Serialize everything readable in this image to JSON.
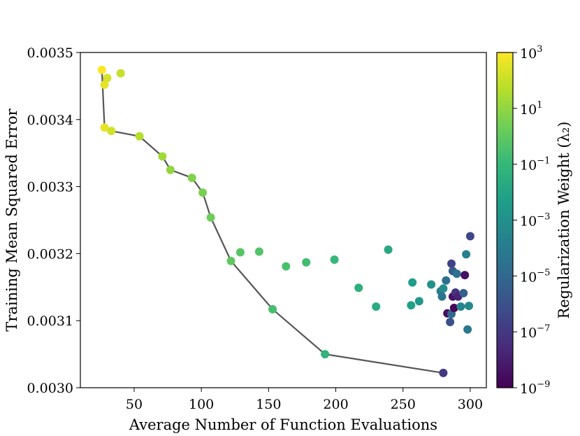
{
  "chart_data": {
    "type": "scatter",
    "title": "",
    "xlabel": "Average Number of Function Evaluations",
    "ylabel": "Training Mean Squared Error",
    "colorbar_label": "Regularization Weight (λ₂)",
    "xlim": [
      10,
      312
    ],
    "ylim": [
      0.003,
      0.0035
    ],
    "x_ticks": [
      50,
      100,
      150,
      200,
      250,
      300
    ],
    "x_tick_labels": [
      "50",
      "100",
      "150",
      "200",
      "250",
      "300"
    ],
    "y_ticks": [
      0.003,
      0.0031,
      0.0032,
      0.0033,
      0.0034,
      0.0035
    ],
    "y_tick_labels": [
      "0.0030",
      "0.0031",
      "0.0032",
      "0.0033",
      "0.0034",
      "0.0035"
    ],
    "colorbar": {
      "log10_range": [
        -9,
        3
      ],
      "tick_exponents": [
        -9,
        -7,
        -5,
        -3,
        -1,
        1,
        3
      ],
      "tick_labels": [
        "10",
        "10",
        "10",
        "10",
        "10",
        "10",
        "10"
      ],
      "tick_label_exponents": [
        "−9",
        "−7",
        "−5",
        "−3",
        "−1",
        "1",
        "3"
      ],
      "colormap": [
        "#440154",
        "#482878",
        "#3e4989",
        "#31688e",
        "#26828e",
        "#1f9e89",
        "#35b779",
        "#6ece58",
        "#b5de2b",
        "#fde725"
      ]
    },
    "points": [
      {
        "x": 26,
        "y": 0.003474,
        "log_lambda": 3.0
      },
      {
        "x": 28,
        "y": 0.003452,
        "log_lambda": 2.6
      },
      {
        "x": 30,
        "y": 0.003462,
        "log_lambda": 2.3
      },
      {
        "x": 40,
        "y": 0.003469,
        "log_lambda": 2.0
      },
      {
        "x": 28,
        "y": 0.003388,
        "log_lambda": 2.6
      },
      {
        "x": 33,
        "y": 0.003383,
        "log_lambda": 2.2
      },
      {
        "x": 54,
        "y": 0.003375,
        "log_lambda": 1.7
      },
      {
        "x": 71,
        "y": 0.003345,
        "log_lambda": 1.3
      },
      {
        "x": 77,
        "y": 0.003325,
        "log_lambda": 1.0
      },
      {
        "x": 93,
        "y": 0.003313,
        "log_lambda": 0.7
      },
      {
        "x": 101,
        "y": 0.003291,
        "log_lambda": 0.5
      },
      {
        "x": 107,
        "y": 0.003254,
        "log_lambda": 0.3
      },
      {
        "x": 122,
        "y": 0.003189,
        "log_lambda": 0.0
      },
      {
        "x": 129,
        "y": 0.003202,
        "log_lambda": -0.2
      },
      {
        "x": 143,
        "y": 0.003203,
        "log_lambda": -0.3
      },
      {
        "x": 153,
        "y": 0.003117,
        "log_lambda": -0.6
      },
      {
        "x": 163,
        "y": 0.003181,
        "log_lambda": -0.5
      },
      {
        "x": 178,
        "y": 0.003187,
        "log_lambda": -0.7
      },
      {
        "x": 192,
        "y": 0.00305,
        "log_lambda": -1.2
      },
      {
        "x": 199,
        "y": 0.003191,
        "log_lambda": -1.0
      },
      {
        "x": 217,
        "y": 0.003149,
        "log_lambda": -1.4
      },
      {
        "x": 230,
        "y": 0.003121,
        "log_lambda": -1.6
      },
      {
        "x": 239,
        "y": 0.003206,
        "log_lambda": -1.8
      },
      {
        "x": 256,
        "y": 0.003123,
        "log_lambda": -2.2
      },
      {
        "x": 257,
        "y": 0.003157,
        "log_lambda": -2.4
      },
      {
        "x": 262,
        "y": 0.003129,
        "log_lambda": -2.6
      },
      {
        "x": 271,
        "y": 0.003154,
        "log_lambda": -3.0
      },
      {
        "x": 278,
        "y": 0.003144,
        "log_lambda": -4.0
      },
      {
        "x": 279,
        "y": 0.003136,
        "log_lambda": -4.3
      },
      {
        "x": 280,
        "y": 0.003148,
        "log_lambda": -3.2
      },
      {
        "x": 280,
        "y": 0.003022,
        "log_lambda": -7.0
      },
      {
        "x": 282,
        "y": 0.00316,
        "log_lambda": -4.6
      },
      {
        "x": 283,
        "y": 0.003111,
        "log_lambda": -8.6
      },
      {
        "x": 285,
        "y": 0.003098,
        "log_lambda": -6.0
      },
      {
        "x": 286,
        "y": 0.00311,
        "log_lambda": -5.0
      },
      {
        "x": 286,
        "y": 0.003185,
        "log_lambda": -6.6
      },
      {
        "x": 287,
        "y": 0.003174,
        "log_lambda": -5.5
      },
      {
        "x": 287,
        "y": 0.003136,
        "log_lambda": -8.3
      },
      {
        "x": 288,
        "y": 0.003119,
        "log_lambda": -8.8
      },
      {
        "x": 289,
        "y": 0.003142,
        "log_lambda": -7.2
      },
      {
        "x": 290,
        "y": 0.00317,
        "log_lambda": -4.5
      },
      {
        "x": 291,
        "y": 0.003136,
        "log_lambda": -7.8
      },
      {
        "x": 293,
        "y": 0.003121,
        "log_lambda": -3.5
      },
      {
        "x": 295,
        "y": 0.003141,
        "log_lambda": -5.4
      },
      {
        "x": 296,
        "y": 0.003168,
        "log_lambda": -8.5
      },
      {
        "x": 297,
        "y": 0.003199,
        "log_lambda": -3.8
      },
      {
        "x": 298,
        "y": 0.003087,
        "log_lambda": -4.2
      },
      {
        "x": 299,
        "y": 0.003122,
        "log_lambda": -3.4
      },
      {
        "x": 300,
        "y": 0.003226,
        "log_lambda": -6.4
      }
    ],
    "frontier_line": [
      {
        "x": 26,
        "y": 0.003474
      },
      {
        "x": 28,
        "y": 0.003388
      },
      {
        "x": 33,
        "y": 0.003383
      },
      {
        "x": 54,
        "y": 0.003375
      },
      {
        "x": 71,
        "y": 0.003345
      },
      {
        "x": 77,
        "y": 0.003325
      },
      {
        "x": 93,
        "y": 0.003313
      },
      {
        "x": 101,
        "y": 0.003291
      },
      {
        "x": 107,
        "y": 0.003254
      },
      {
        "x": 122,
        "y": 0.003189
      },
      {
        "x": 153,
        "y": 0.003117
      },
      {
        "x": 192,
        "y": 0.00305
      },
      {
        "x": 280,
        "y": 0.003022
      }
    ],
    "line_color": "#555555"
  }
}
